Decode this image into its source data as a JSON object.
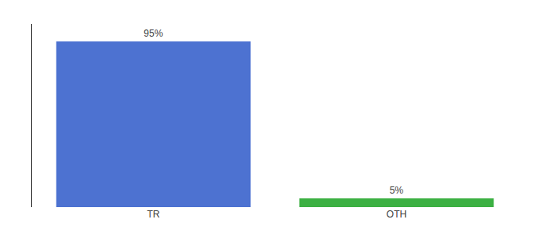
{
  "chart_data": {
    "type": "bar",
    "categories": [
      "TR",
      "OTH"
    ],
    "values": [
      95,
      5
    ],
    "value_labels": [
      "95%",
      "5%"
    ],
    "data_labels": true,
    "colors": [
      "#4d72d1",
      "#3cb043"
    ],
    "ylim": [
      0,
      105
    ],
    "grid": false,
    "tick_labels": "x"
  }
}
